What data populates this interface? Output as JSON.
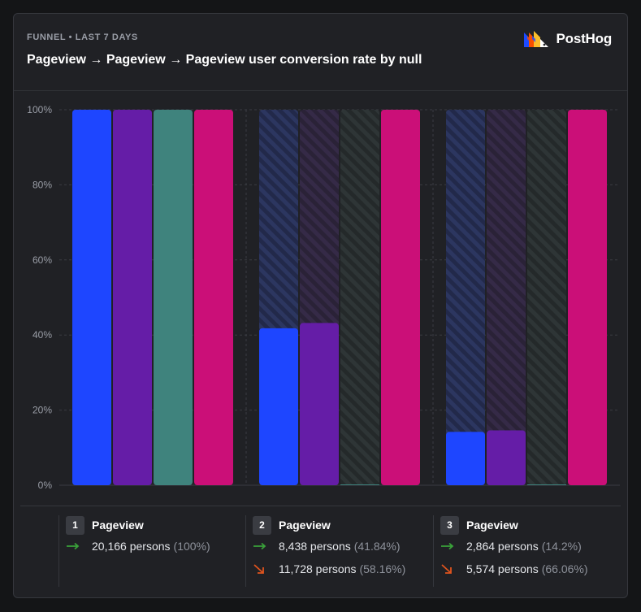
{
  "header": {
    "subtitle": "FUNNEL • LAST 7 DAYS",
    "title": "Pageview → Pageview → Pageview user conversion rate by null",
    "logo_text": "PostHog"
  },
  "colors": {
    "series": [
      "#1e46ff",
      "#651da7",
      "#3f837d",
      "#cb0f78"
    ],
    "grid": "#3a3c42",
    "axis_text": "#9a9ea7",
    "arrow_converted": "#3aa23a",
    "arrow_dropped": "#e0541e"
  },
  "chart_data": {
    "type": "bar",
    "categories": [
      "Pageview",
      "Pageview",
      "Pageview"
    ],
    "series": [
      {
        "values": [
          100,
          41.8,
          14.2
        ]
      },
      {
        "values": [
          100,
          43.2,
          14.6
        ]
      },
      {
        "values": [
          100,
          0,
          0
        ]
      },
      {
        "values": [
          100,
          100,
          100
        ]
      }
    ],
    "ylim": [
      0,
      100
    ],
    "yticks": [
      "0%",
      "20%",
      "40%",
      "60%",
      "80%",
      "100%"
    ],
    "grid": true
  },
  "steps": [
    {
      "num": "1",
      "name": "Pageview",
      "converted": "20,166 persons",
      "converted_pct": "(100%)",
      "dropped": "",
      "dropped_pct": ""
    },
    {
      "num": "2",
      "name": "Pageview",
      "converted": "8,438 persons",
      "converted_pct": "(41.84%)",
      "dropped": "11,728 persons",
      "dropped_pct": "(58.16%)"
    },
    {
      "num": "3",
      "name": "Pageview",
      "converted": "2,864 persons",
      "converted_pct": "(14.2%)",
      "dropped": "5,574 persons",
      "dropped_pct": "(66.06%)"
    }
  ]
}
